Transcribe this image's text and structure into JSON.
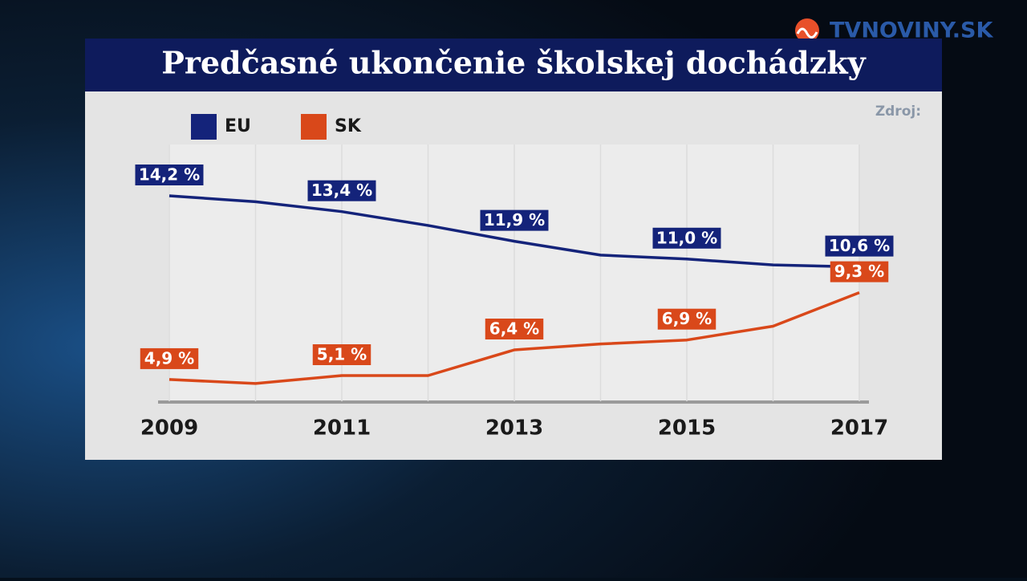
{
  "chart_data": {
    "type": "line",
    "title": "Predčasné ukončenie školskej dochádzky",
    "categories": [
      "2009",
      null,
      "2011",
      null,
      "2013",
      null,
      "2015",
      null,
      "2017"
    ],
    "series": [
      {
        "name": "EU",
        "color": "#14237a",
        "values": [
          14.2,
          13.9,
          13.4,
          12.7,
          11.9,
          11.2,
          11.0,
          10.7,
          10.6
        ],
        "value_labels": [
          "14,2 %",
          null,
          "13,4 %",
          null,
          "11,9 %",
          null,
          "11,0 %",
          null,
          "10,6 %"
        ]
      },
      {
        "name": "SK",
        "color": "#d9481a",
        "values": [
          4.9,
          4.7,
          5.1,
          5.1,
          6.4,
          6.7,
          6.9,
          7.6,
          9.3
        ],
        "value_labels": [
          "4,9 %",
          null,
          "5,1 %",
          null,
          "6,4 %",
          null,
          "6,9 %",
          null,
          "9,3 %"
        ]
      }
    ],
    "ylim": [
      3.8,
      16.8
    ]
  },
  "source_label": "Zdroj:",
  "logo": "TVNOVINY.SK"
}
